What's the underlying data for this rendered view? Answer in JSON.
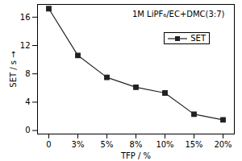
{
  "chart_data": {
    "type": "line",
    "annotations": [
      "1M LiPF₆/EC+DMC(3:7)"
    ],
    "x_label": "TFP / %",
    "y_label": "SET / s",
    "categories": [
      "0",
      "3%",
      "5%",
      "8%",
      "10%",
      "15%",
      "20%"
    ],
    "series": [
      {
        "name": "SET",
        "color": "#222222",
        "marker": "square",
        "line_style": "solid",
        "values": [
          17.2,
          10.6,
          7.5,
          6.1,
          5.3,
          2.3,
          1.5
        ]
      }
    ],
    "ylim": [
      -0.5,
      17.8
    ],
    "yticks": [
      0,
      4,
      8,
      12,
      16
    ],
    "grid": false,
    "legend": "upper right"
  }
}
